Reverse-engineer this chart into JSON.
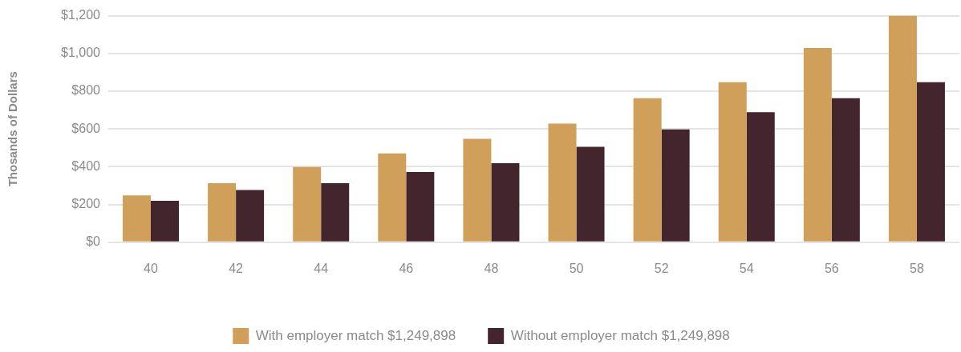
{
  "chart_data": {
    "type": "bar",
    "ylabel": "Thosands of Dollars",
    "categories": [
      "40",
      "42",
      "44",
      "46",
      "48",
      "50",
      "52",
      "54",
      "56",
      "58"
    ],
    "series": [
      {
        "name": "With employer match $1,249,898",
        "color": "#d0a05a",
        "values": [
          248,
          313,
          399,
          471,
          548,
          628,
          763,
          848,
          1029,
          1200
        ]
      },
      {
        "name": "Without employer match $1,249,898",
        "color": "#43262d",
        "values": [
          220,
          277,
          313,
          372,
          419,
          505,
          598,
          689,
          763,
          848
        ]
      }
    ],
    "ylim": [
      0,
      1200
    ],
    "yticks": [
      {
        "value": 0,
        "label": "$0"
      },
      {
        "value": 200,
        "label": "$200"
      },
      {
        "value": 400,
        "label": "$400"
      },
      {
        "value": 600,
        "label": "$600"
      },
      {
        "value": 800,
        "label": "$800"
      },
      {
        "value": 1000,
        "label": "$1,000"
      },
      {
        "value": 1200,
        "label": "$1,200"
      }
    ],
    "grid": "y",
    "legend": "bottom"
  }
}
